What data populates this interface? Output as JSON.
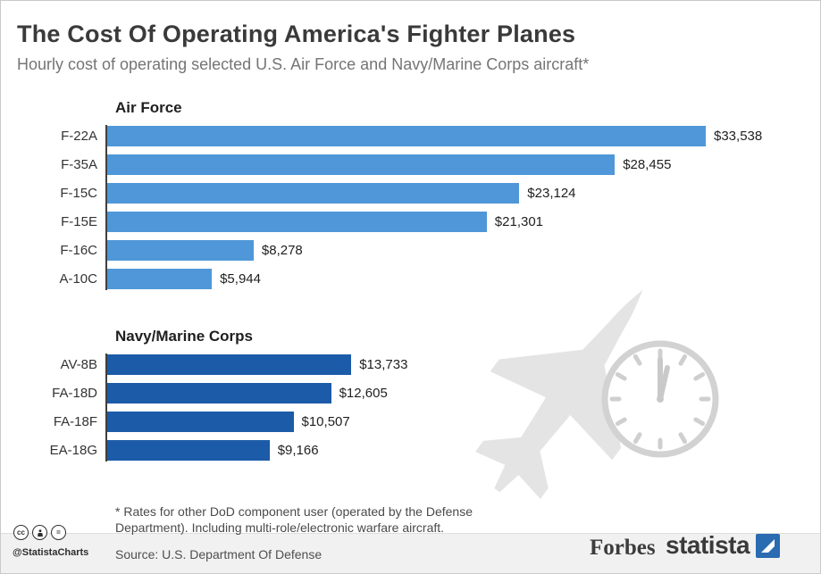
{
  "colors": {
    "air_force_bar": "#4f97d8",
    "navy_bar": "#1c5ba8",
    "statista_blue": "#2a6bb2",
    "axis_line": "#3f3f3f"
  },
  "header": {
    "title": "The Cost Of Operating America's Fighter Planes",
    "subtitle": "Hourly cost of operating selected U.S. Air Force and Navy/Marine Corps aircraft*"
  },
  "chart_data": {
    "type": "bar",
    "orientation": "horizontal",
    "max_value": 33538,
    "groups": [
      {
        "name": "Air Force",
        "color": "#4f97d8",
        "categories": [
          "F-22A",
          "F-35A",
          "F-15C",
          "F-15E",
          "F-16C",
          "A-10C"
        ],
        "values": [
          33538,
          28455,
          23124,
          21301,
          8278,
          5944
        ],
        "value_labels": [
          "$33,538",
          "$28,455",
          "$23,124",
          "$21,301",
          "$8,278",
          "$5,944"
        ]
      },
      {
        "name": "Navy/Marine Corps",
        "color": "#1c5ba8",
        "categories": [
          "AV-8B",
          "FA-18D",
          "FA-18F",
          "EA-18G"
        ],
        "values": [
          13733,
          12605,
          10507,
          9166
        ],
        "value_labels": [
          "$13,733",
          "$12,605",
          "$10,507",
          "$9,166"
        ]
      }
    ]
  },
  "footer": {
    "footnote_lines": [
      "* Rates for other DoD component user (operated by the Defense",
      "Department). Including multi-role/electronic warfare aircraft."
    ],
    "source": "Source: U.S. Department Of Defense",
    "credit": "@StatistaCharts",
    "license": {
      "cc_glyph": "cc",
      "nd_glyph": "="
    },
    "brands": {
      "forbes": "Forbes",
      "statista": "statista"
    }
  }
}
